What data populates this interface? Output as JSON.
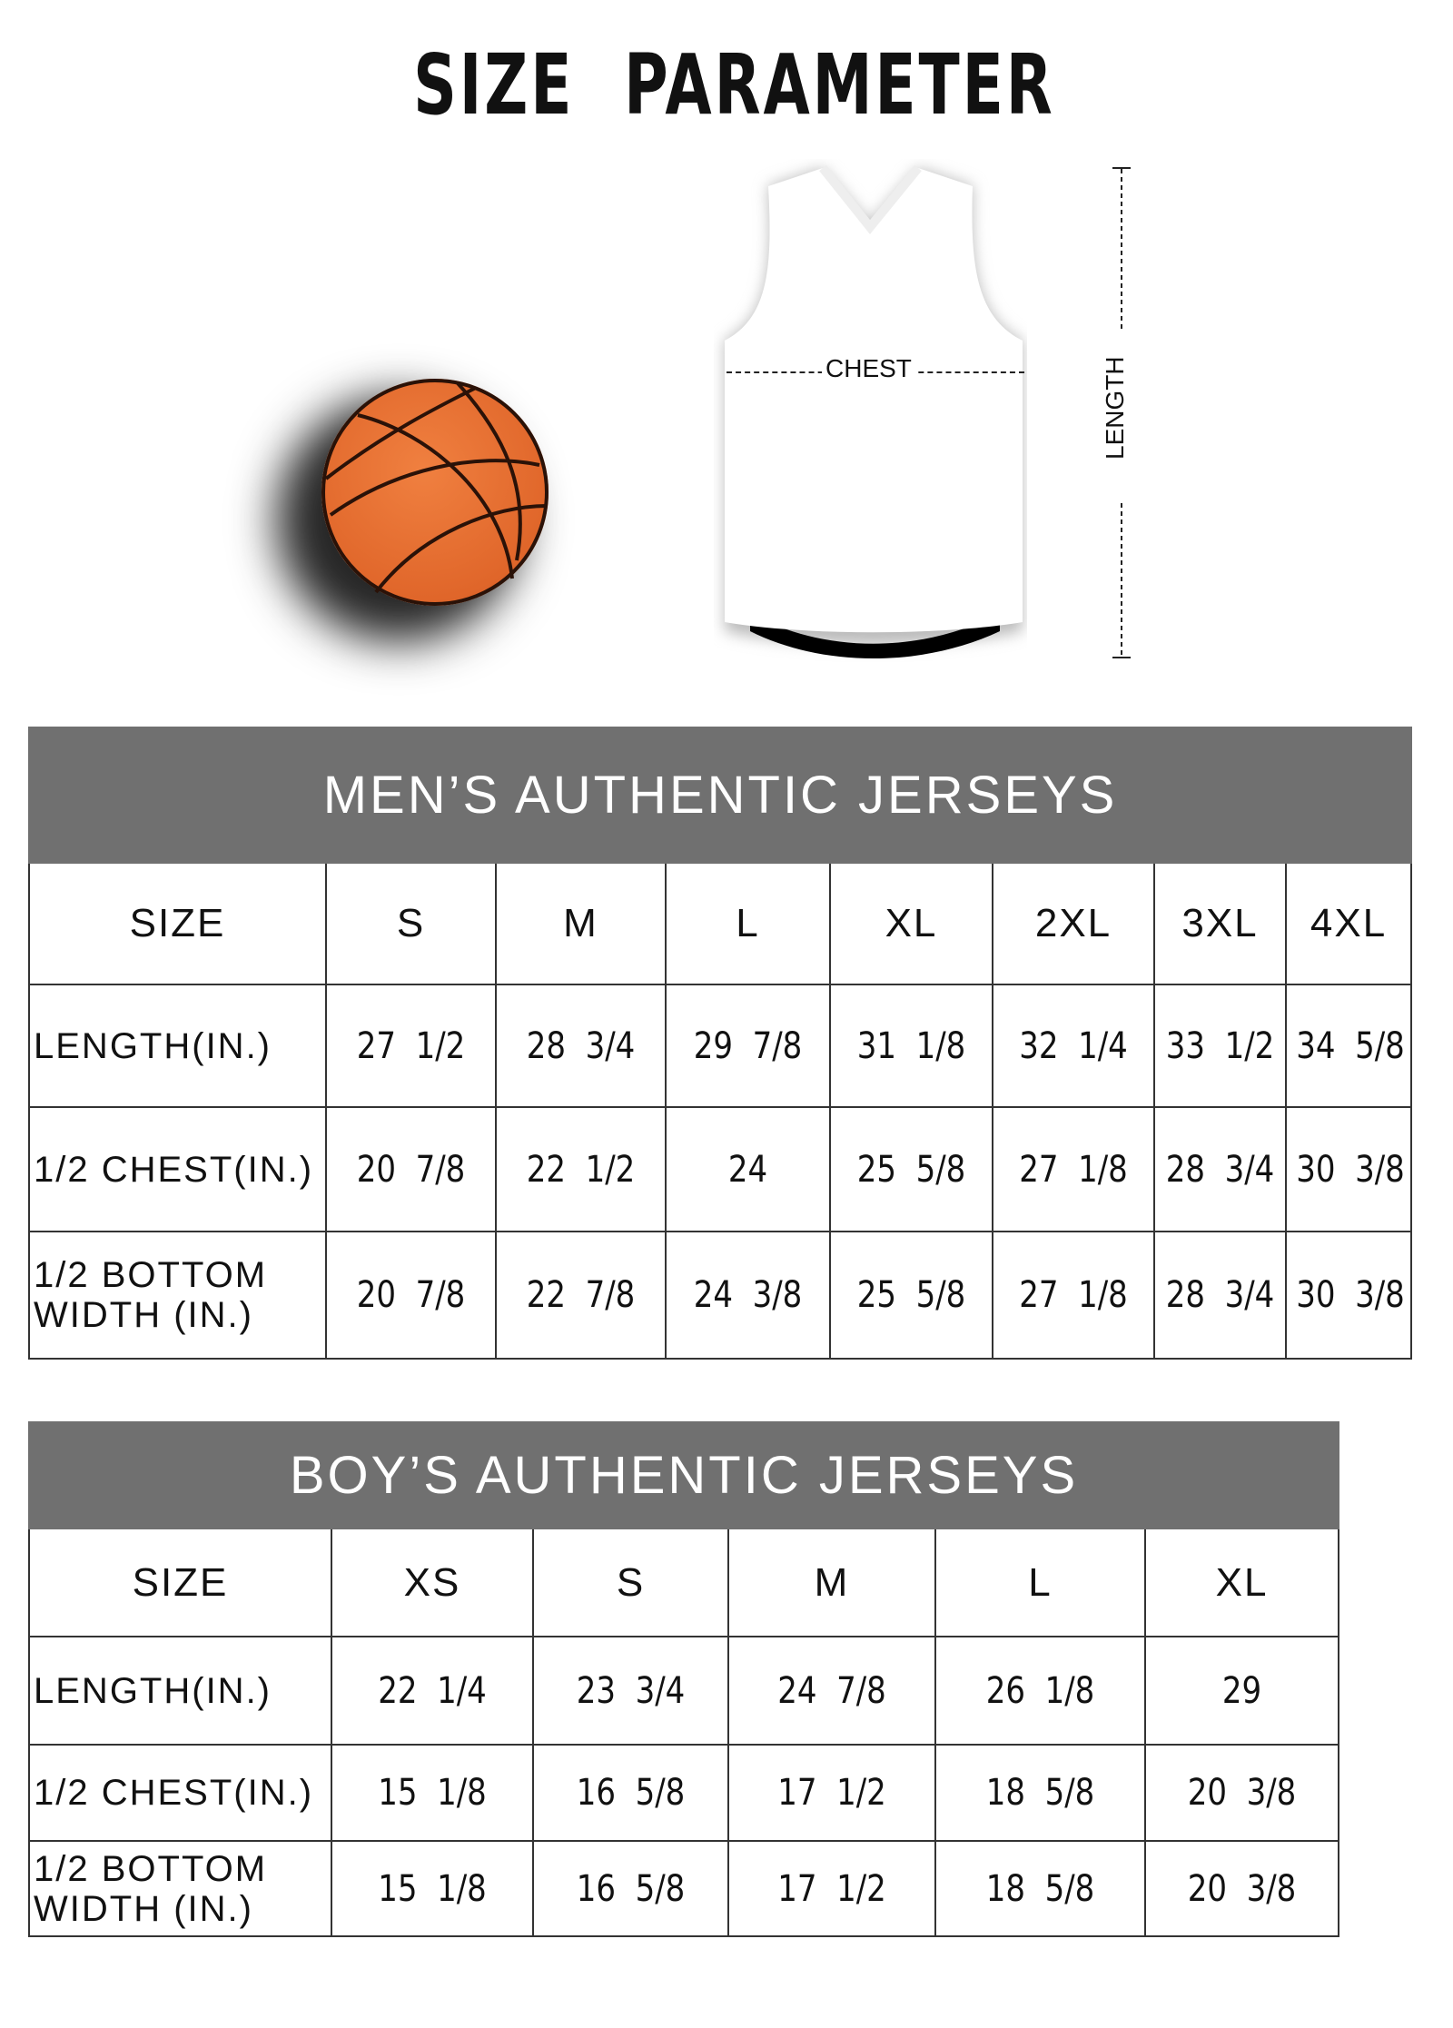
{
  "title": "SIZE PARAMETER",
  "diagram": {
    "chest_label": "CHEST",
    "length_label": "LENGTH",
    "ball_color": "#e0662a"
  },
  "men": {
    "heading": "MEN’S AUTHENTIC JERSEYS",
    "size_label": "SIZE",
    "sizes": [
      "S",
      "M",
      "L",
      "XL",
      "2XL",
      "3XL",
      "4XL"
    ],
    "rows": [
      {
        "label": "LENGTH(IN.)",
        "values": [
          "27  1/2",
          "28  3/4",
          "29  7/8",
          "31  1/8",
          "32  1/4",
          "33  1/2",
          "34  5/8"
        ]
      },
      {
        "label": "1/2 CHEST(IN.)",
        "values": [
          "20  7/8",
          "22  1/2",
          "24",
          "25  5/8",
          "27  1/8",
          "28  3/4",
          "30  3/8"
        ]
      },
      {
        "label": "1/2 BOTTOM WIDTH (IN.)",
        "values": [
          "20  7/8",
          "22  7/8",
          "24  3/8",
          "25  5/8",
          "27  1/8",
          "28  3/4",
          "30  3/8"
        ]
      }
    ]
  },
  "boy": {
    "heading": "BOY’S AUTHENTIC JERSEYS",
    "size_label": "SIZE",
    "sizes": [
      "XS",
      "S",
      "M",
      "L",
      "XL"
    ],
    "rows": [
      {
        "label": "LENGTH(IN.)",
        "values": [
          "22  1/4",
          "23  3/4",
          "24  7/8",
          "26  1/8",
          "29"
        ]
      },
      {
        "label": "1/2 CHEST(IN.)",
        "values": [
          "15  1/8",
          "16  5/8",
          "17  1/2",
          "18  5/8",
          "20  3/8"
        ]
      },
      {
        "label": "1/2 BOTTOM WIDTH (IN.)",
        "values": [
          "15  1/8",
          "16  5/8",
          "17  1/2",
          "18  5/8",
          "20  3/8"
        ]
      }
    ]
  },
  "header_color": "#707070"
}
